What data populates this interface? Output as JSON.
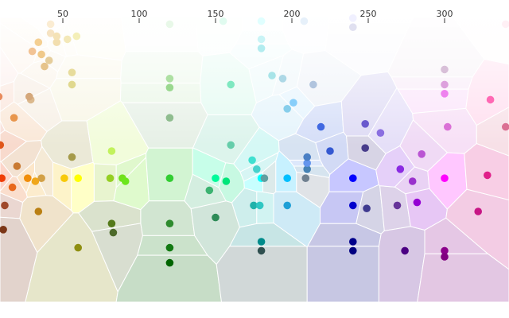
{
  "chart_data": {
    "type": "scatter",
    "title": "",
    "xlabel": "",
    "ylabel": "",
    "subtype": "voronoi",
    "x_axis_position": "top",
    "xlim": [
      10,
      345
    ],
    "x_ticks": [
      50,
      100,
      150,
      200,
      250,
      300
    ],
    "y_scale": "lightness",
    "grid": false,
    "points": [
      {
        "hue": 2,
        "lightness": 0.4,
        "color": "#d13a1f"
      },
      {
        "hue": 2,
        "lightness": 0.57,
        "color": "#e06f4e"
      },
      {
        "hue": 3,
        "lightness": 0.69,
        "color": "#e79a84"
      },
      {
        "hue": 9,
        "lightness": 0.52,
        "color": "#e0551a"
      },
      {
        "hue": 8,
        "lightness": 0.68,
        "color": "#e88b5d"
      },
      {
        "hue": 4,
        "lightness": 0.74,
        "color": "#f0b3a5"
      },
      {
        "hue": 10,
        "lightness": 0.41,
        "color": "#f03e08"
      },
      {
        "hue": 12,
        "lightness": 0.32,
        "color": "#a04a2c"
      },
      {
        "hue": 11,
        "lightness": 0.24,
        "color": "#7b3617"
      },
      {
        "hue": 18,
        "lightness": 0.61,
        "color": "#e8964d"
      },
      {
        "hue": 20,
        "lightness": 0.45,
        "color": "#c97a33"
      },
      {
        "hue": 17,
        "lightness": 0.38,
        "color": "#e8681c"
      },
      {
        "hue": 27,
        "lightness": 0.41,
        "color": "#f08e0a"
      },
      {
        "hue": 29,
        "lightness": 0.67,
        "color": "#dbb98e"
      },
      {
        "hue": 28,
        "lightness": 0.68,
        "color": "#d4a77a"
      },
      {
        "hue": 36,
        "lightness": 0.41,
        "color": "#d2a046"
      },
      {
        "hue": 32,
        "lightness": 0.4,
        "color": "#f0a71a"
      },
      {
        "hue": 34,
        "lightness": 0.3,
        "color": "#ba8013"
      },
      {
        "hue": 30,
        "lightness": 0.83,
        "color": "#f2c395"
      },
      {
        "hue": 34,
        "lightness": 0.86,
        "color": "#f4cf92"
      },
      {
        "hue": 36,
        "lightness": 0.82,
        "color": "#f0c98a"
      },
      {
        "hue": 38,
        "lightness": 0.78,
        "color": "#e6c48c"
      },
      {
        "hue": 41,
        "lightness": 0.8,
        "color": "#e5cd9b"
      },
      {
        "hue": 42,
        "lightness": 0.92,
        "color": "#fbecd2"
      },
      {
        "hue": 42,
        "lightness": 0.89,
        "color": "#f6e3c2"
      },
      {
        "hue": 46,
        "lightness": 0.86,
        "color": "#f2deae"
      },
      {
        "hue": 46,
        "lightness": 0.88,
        "color": "#f4e2b6"
      },
      {
        "hue": 53,
        "lightness": 0.87,
        "color": "#f3e8b8"
      },
      {
        "hue": 51,
        "lightness": 0.41,
        "color": "#f7c90a"
      },
      {
        "hue": 56,
        "lightness": 0.48,
        "color": "#a59a4a"
      },
      {
        "hue": 56,
        "lightness": 0.76,
        "color": "#e7dc9c"
      },
      {
        "hue": 56,
        "lightness": 0.72,
        "color": "#e0d88e"
      },
      {
        "hue": 60,
        "lightness": 0.41,
        "color": "#ffff00"
      },
      {
        "hue": 60,
        "lightness": 0.18,
        "color": "#8f8f10"
      },
      {
        "hue": 59,
        "lightness": 0.88,
        "color": "#f4efb8"
      },
      {
        "hue": 82,
        "lightness": 0.5,
        "color": "#c2f25c"
      },
      {
        "hue": 81,
        "lightness": 0.41,
        "color": "#95cf23"
      },
      {
        "hue": 82,
        "lightness": 0.26,
        "color": "#557a1a"
      },
      {
        "hue": 83,
        "lightness": 0.23,
        "color": "#4d6a2a"
      },
      {
        "hue": 89,
        "lightness": 0.41,
        "color": "#72e01d"
      },
      {
        "hue": 91,
        "lightness": 0.4,
        "color": "#6ce61c"
      },
      {
        "hue": 120,
        "lightness": 0.74,
        "color": "#aee0a3"
      },
      {
        "hue": 120,
        "lightness": 0.71,
        "color": "#9ad88f"
      },
      {
        "hue": 120,
        "lightness": 0.61,
        "color": "#8fbd8f"
      },
      {
        "hue": 120,
        "lightness": 0.41,
        "color": "#32cd32"
      },
      {
        "hue": 120,
        "lightness": 0.26,
        "color": "#2e8b2e"
      },
      {
        "hue": 120,
        "lightness": 0.18,
        "color": "#137a13"
      },
      {
        "hue": 120,
        "lightness": 0.13,
        "color": "#006400"
      },
      {
        "hue": 120,
        "lightness": 0.92,
        "color": "#e8f8e8"
      },
      {
        "hue": 150,
        "lightness": 0.28,
        "color": "#2e8b57"
      },
      {
        "hue": 146,
        "lightness": 0.37,
        "color": "#3cb371"
      },
      {
        "hue": 150,
        "lightness": 0.41,
        "color": "#00fa9a"
      },
      {
        "hue": 157,
        "lightness": 0.4,
        "color": "#00e57a"
      },
      {
        "hue": 160,
        "lightness": 0.52,
        "color": "#66cdaa"
      },
      {
        "hue": 160,
        "lightness": 0.72,
        "color": "#7fe8c0"
      },
      {
        "hue": 155,
        "lightness": 0.93,
        "color": "#e0fbef"
      },
      {
        "hue": 174,
        "lightness": 0.47,
        "color": "#40e0d0"
      },
      {
        "hue": 177,
        "lightness": 0.44,
        "color": "#48d1cc"
      },
      {
        "hue": 180,
        "lightness": 0.41,
        "color": "#00ffff"
      },
      {
        "hue": 175,
        "lightness": 0.32,
        "color": "#20b2aa"
      },
      {
        "hue": 179,
        "lightness": 0.32,
        "color": "#2fc7c3"
      },
      {
        "hue": 180,
        "lightness": 0.2,
        "color": "#008b8b"
      },
      {
        "hue": 180,
        "lightness": 0.17,
        "color": "#2f4f4f"
      },
      {
        "hue": 182,
        "lightness": 0.41,
        "color": "#5f9ea0"
      },
      {
        "hue": 180,
        "lightness": 0.87,
        "color": "#c9f4f6"
      },
      {
        "hue": 180,
        "lightness": 0.84,
        "color": "#b2ecef"
      },
      {
        "hue": 180,
        "lightness": 0.93,
        "color": "#e0ffff"
      },
      {
        "hue": 187,
        "lightness": 0.75,
        "color": "#a8e4e8"
      },
      {
        "hue": 194,
        "lightness": 0.74,
        "color": "#add8e6"
      },
      {
        "hue": 197,
        "lightness": 0.41,
        "color": "#00bfff"
      },
      {
        "hue": 197,
        "lightness": 0.32,
        "color": "#1e9fd6"
      },
      {
        "hue": 197,
        "lightness": 0.64,
        "color": "#87ceeb"
      },
      {
        "hue": 201,
        "lightness": 0.66,
        "color": "#87cefa"
      },
      {
        "hue": 209,
        "lightness": 0.41,
        "color": "#708090"
      },
      {
        "hue": 210,
        "lightness": 0.44,
        "color": "#4682b4"
      },
      {
        "hue": 210,
        "lightness": 0.46,
        "color": "#6495ed"
      },
      {
        "hue": 210,
        "lightness": 0.48,
        "color": "#4a7fc4"
      },
      {
        "hue": 208,
        "lightness": 0.93,
        "color": "#e6f0fa"
      },
      {
        "hue": 214,
        "lightness": 0.72,
        "color": "#b0c4de"
      },
      {
        "hue": 219,
        "lightness": 0.58,
        "color": "#4169e1"
      },
      {
        "hue": 225,
        "lightness": 0.5,
        "color": "#3458d1"
      },
      {
        "hue": 240,
        "lightness": 0.94,
        "color": "#f0f0ff"
      },
      {
        "hue": 240,
        "lightness": 0.91,
        "color": "#e0e0f0"
      },
      {
        "hue": 240,
        "lightness": 0.41,
        "color": "#0000ff"
      },
      {
        "hue": 240,
        "lightness": 0.32,
        "color": "#0000cd"
      },
      {
        "hue": 240,
        "lightness": 0.2,
        "color": "#00008b"
      },
      {
        "hue": 240,
        "lightness": 0.17,
        "color": "#000080"
      },
      {
        "hue": 248,
        "lightness": 0.59,
        "color": "#6a5acd"
      },
      {
        "hue": 248,
        "lightness": 0.51,
        "color": "#483d8b"
      },
      {
        "hue": 249,
        "lightness": 0.31,
        "color": "#3f3a8f"
      },
      {
        "hue": 258,
        "lightness": 0.56,
        "color": "#8a6ee0"
      },
      {
        "hue": 269,
        "lightness": 0.32,
        "color": "#663399"
      },
      {
        "hue": 271,
        "lightness": 0.44,
        "color": "#8a2be2"
      },
      {
        "hue": 274,
        "lightness": 0.17,
        "color": "#4b0082"
      },
      {
        "hue": 279,
        "lightness": 0.4,
        "color": "#9932cc"
      },
      {
        "hue": 282,
        "lightness": 0.33,
        "color": "#9400d3"
      },
      {
        "hue": 285,
        "lightness": 0.49,
        "color": "#ba55d3"
      },
      {
        "hue": 300,
        "lightness": 0.77,
        "color": "#d8bfd8"
      },
      {
        "hue": 300,
        "lightness": 0.72,
        "color": "#dda0dd"
      },
      {
        "hue": 300,
        "lightness": 0.69,
        "color": "#ee82ee"
      },
      {
        "hue": 302,
        "lightness": 0.58,
        "color": "#da70d6"
      },
      {
        "hue": 300,
        "lightness": 0.41,
        "color": "#ff00ff"
      },
      {
        "hue": 300,
        "lightness": 0.17,
        "color": "#8b008b"
      },
      {
        "hue": 300,
        "lightness": 0.15,
        "color": "#800080"
      },
      {
        "hue": 322,
        "lightness": 0.3,
        "color": "#c71585"
      },
      {
        "hue": 328,
        "lightness": 0.42,
        "color": "#e0208a"
      },
      {
        "hue": 330,
        "lightness": 0.67,
        "color": "#ff69b4"
      },
      {
        "hue": 340,
        "lightness": 0.58,
        "color": "#db7093"
      },
      {
        "hue": 340,
        "lightness": 0.92,
        "color": "#fff0f5"
      }
    ]
  }
}
